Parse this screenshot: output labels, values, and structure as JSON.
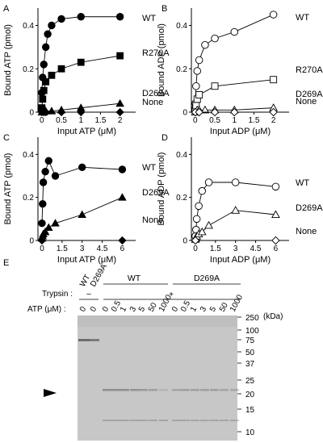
{
  "panels": [
    {
      "letter": "A",
      "chart_data": {
        "type": "line",
        "xlabel": "Input ATP (μM)",
        "ylabel": "Bound ATP (pmol)",
        "xlim": [
          -0.1,
          2.4
        ],
        "ylim": [
          0,
          0.48
        ],
        "xticks": [
          0,
          0.5,
          1,
          1.5,
          2
        ],
        "xtick_labels": [
          "0",
          "0.5",
          "1",
          "1.5",
          "2"
        ],
        "yticks": [
          0,
          0.2,
          0.4
        ],
        "ytick_labels": [
          "0",
          "0.2",
          "0.4"
        ],
        "series": [
          {
            "name": "WT",
            "marker": "circle",
            "filled": true,
            "x": [
              0,
              0.02,
              0.05,
              0.1,
              0.15,
              0.25,
              0.5,
              1,
              2
            ],
            "y": [
              0.09,
              0.16,
              0.22,
              0.3,
              0.36,
              0.4,
              0.43,
              0.44,
              0.44
            ]
          },
          {
            "name": "R270A",
            "marker": "square",
            "filled": true,
            "x": [
              0,
              0.02,
              0.05,
              0.1,
              0.25,
              0.5,
              1,
              2
            ],
            "y": [
              0.02,
              0.06,
              0.1,
              0.14,
              0.17,
              0.2,
              0.23,
              0.26
            ]
          },
          {
            "name": "D269A",
            "marker": "triangle",
            "filled": true,
            "x": [
              0,
              0.02,
              0.05,
              0.1,
              0.25,
              0.5,
              1,
              2
            ],
            "y": [
              0.0,
              0.0,
              0.0,
              0.005,
              0.005,
              0.01,
              0.02,
              0.04
            ]
          },
          {
            "name": "None",
            "marker": "diamond",
            "filled": true,
            "x": [
              0,
              0.05,
              0.1,
              0.5,
              1,
              2
            ],
            "y": [
              0,
              0,
              0,
              0,
              0,
              0
            ]
          }
        ]
      }
    },
    {
      "letter": "B",
      "chart_data": {
        "type": "line",
        "xlabel": "Input ADP (μM)",
        "ylabel": "Bound ADP (pmol)",
        "xlim": [
          -0.1,
          2.4
        ],
        "ylim": [
          0,
          0.48
        ],
        "xticks": [
          0,
          0.5,
          1,
          1.5,
          2
        ],
        "xtick_labels": [
          "0",
          "0.5",
          "1",
          "1.5",
          "2"
        ],
        "yticks": [
          0,
          0.2,
          0.4
        ],
        "ytick_labels": [
          "0",
          "0.2",
          "0.4"
        ],
        "series": [
          {
            "name": "WT",
            "marker": "circle",
            "filled": false,
            "x": [
              0,
              0.02,
              0.05,
              0.1,
              0.25,
              0.5,
              1,
              2
            ],
            "y": [
              0.04,
              0.12,
              0.19,
              0.24,
              0.31,
              0.34,
              0.37,
              0.45
            ]
          },
          {
            "name": "R270A",
            "marker": "square",
            "filled": false,
            "x": [
              0,
              0.02,
              0.05,
              0.1,
              0.5,
              2
            ],
            "y": [
              0.01,
              0.03,
              0.06,
              0.08,
              0.12,
              0.15
            ]
          },
          {
            "name": "D269A",
            "marker": "triangle",
            "filled": false,
            "x": [
              0,
              0.05,
              0.1,
              0.25,
              0.5,
              1,
              2
            ],
            "y": [
              0,
              0.01,
              0.01,
              0.01,
              0.01,
              0.01,
              0.02
            ]
          },
          {
            "name": "None",
            "marker": "diamond",
            "filled": false,
            "x": [
              0,
              0.1,
              0.5,
              1,
              2
            ],
            "y": [
              0,
              0,
              0,
              0,
              0
            ]
          }
        ]
      }
    },
    {
      "letter": "C",
      "chart_data": {
        "type": "line",
        "xlabel": "Input ATP (μM)",
        "ylabel": "Bound ATP (pmol)",
        "xlim": [
          -0.3,
          7
        ],
        "ylim": [
          0,
          0.48
        ],
        "xticks": [
          0,
          1.5,
          3,
          4.5,
          6
        ],
        "xtick_labels": [
          "0",
          "1.5",
          "3",
          "4.5",
          "6"
        ],
        "yticks": [
          0,
          0.2,
          0.4
        ],
        "ytick_labels": [
          "0",
          "0.2",
          "0.4"
        ],
        "series": [
          {
            "name": "WT",
            "marker": "circle",
            "filled": true,
            "x": [
              0,
              0.05,
              0.1,
              0.25,
              0.5,
              1,
              3,
              6
            ],
            "y": [
              0.08,
              0.17,
              0.27,
              0.32,
              0.37,
              0.3,
              0.34,
              0.33
            ]
          },
          {
            "name": "D269A",
            "marker": "triangle",
            "filled": true,
            "x": [
              0,
              0.05,
              0.1,
              0.25,
              0.5,
              1,
              3,
              6
            ],
            "y": [
              0.01,
              0.02,
              0.03,
              0.04,
              0.06,
              0.08,
              0.12,
              0.2
            ]
          },
          {
            "name": "None",
            "marker": "diamond",
            "filled": true,
            "x": [
              0,
              6
            ],
            "y": [
              0,
              0
            ]
          }
        ]
      }
    },
    {
      "letter": "D",
      "chart_data": {
        "type": "line",
        "xlabel": "Input ADP (μM)",
        "ylabel": "Bound ADP (pmol)",
        "xlim": [
          -0.3,
          7
        ],
        "ylim": [
          0,
          0.48
        ],
        "xticks": [
          0,
          1.5,
          3,
          4.5,
          6
        ],
        "xtick_labels": [
          "0",
          "1.5",
          "3",
          "4.5",
          "6"
        ],
        "yticks": [
          0,
          0.2,
          0.4
        ],
        "ytick_labels": [
          "0",
          "0.2",
          "0.4"
        ],
        "series": [
          {
            "name": "WT",
            "marker": "circle",
            "filled": false,
            "x": [
              0,
              0.05,
              0.1,
              0.25,
              0.5,
              1,
              3,
              6
            ],
            "y": [
              0.02,
              0.05,
              0.1,
              0.16,
              0.23,
              0.27,
              0.27,
              0.25
            ]
          },
          {
            "name": "D269A",
            "marker": "triangle",
            "filled": false,
            "x": [
              0,
              0.05,
              0.1,
              0.25,
              0.5,
              1,
              3,
              6
            ],
            "y": [
              0.005,
              0.01,
              0.02,
              0.03,
              0.04,
              0.07,
              0.14,
              0.12
            ]
          },
          {
            "name": "None",
            "marker": "diamond",
            "filled": false,
            "x": [
              0,
              6
            ],
            "y": [
              0,
              0
            ]
          }
        ]
      }
    }
  ],
  "gel": {
    "letter": "E",
    "lane_headers": [
      "WT",
      "D269A"
    ],
    "group_labels": [
      "WT",
      "D269A"
    ],
    "trypsin_label": "Trypsin :",
    "trypsin_minus": "–",
    "trypsin_plus": "+",
    "atp_label": "ATP (μM) :",
    "atp_values": [
      "0",
      "0",
      "0",
      "0.5",
      "1",
      "3",
      "5",
      "50",
      "1000",
      "0",
      "0.5",
      "1",
      "3",
      "5",
      "50",
      "1000"
    ],
    "kda_unit": "(kDa)",
    "markers": [
      "250",
      "100",
      "75",
      "50",
      "37",
      "25",
      "20",
      "15",
      "10"
    ]
  }
}
